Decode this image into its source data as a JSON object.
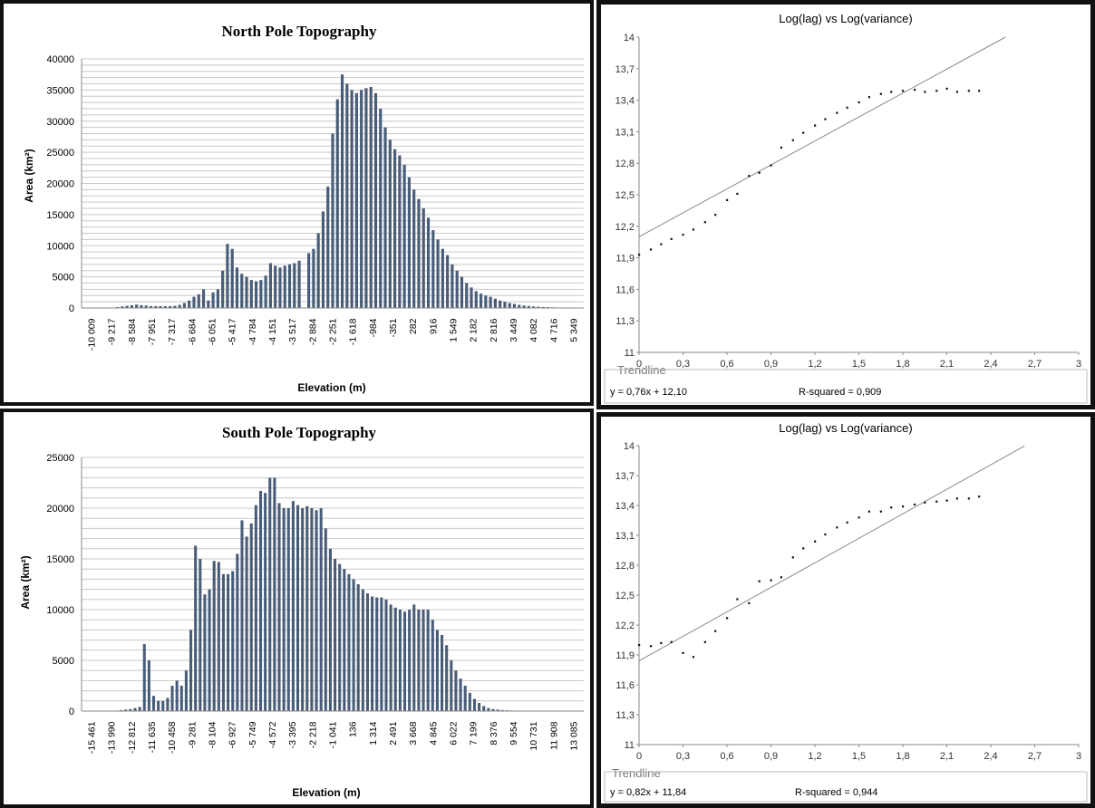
{
  "chart_data": [
    {
      "type": "bar",
      "title": "North Pole Topography",
      "xlabel": "Elevation (m)",
      "ylabel": "Area (km²)",
      "ylim": [
        0,
        40000
      ],
      "yticks": [
        "0",
        "5000",
        "10000",
        "15000",
        "20000",
        "25000",
        "30000",
        "35000",
        "40000"
      ],
      "grid": true,
      "x_tick_labels": [
        "-10 009",
        "-9 217",
        "-8 584",
        "-7 951",
        "-7 317",
        "-6 684",
        "-6 051",
        "-5 417",
        "-4 784",
        "-4 151",
        "-3 517",
        "-2 884",
        "-2 251",
        "-1 618",
        "-984",
        "-351",
        "282",
        "916",
        "1 549",
        "2 182",
        "2 816",
        "3 449",
        "4 082",
        "4 716",
        "5 349"
      ],
      "values": [
        0,
        0,
        0,
        0,
        0,
        0,
        0,
        150,
        250,
        350,
        450,
        550,
        450,
        400,
        300,
        300,
        300,
        300,
        300,
        350,
        500,
        800,
        1200,
        1800,
        2200,
        3000,
        1200,
        2500,
        3000,
        6000,
        10300,
        9500,
        6500,
        5500,
        5000,
        4500,
        4300,
        4500,
        5200,
        7200,
        6800,
        6500,
        6800,
        7000,
        7200,
        7600,
        0,
        8800,
        9500,
        12000,
        15500,
        19500,
        28000,
        33500,
        37500,
        36000,
        35000,
        34500,
        35000,
        35300,
        35500,
        34500,
        32000,
        29000,
        27000,
        25500,
        24500,
        23000,
        21000,
        19000,
        17500,
        16000,
        14500,
        12500,
        11000,
        9500,
        8500,
        7000,
        6000,
        5000,
        4000,
        3300,
        2700,
        2300,
        2000,
        1800,
        1500,
        1200,
        1000,
        800,
        650,
        500,
        400,
        320,
        250,
        200,
        160,
        130,
        100,
        80,
        60,
        50,
        40,
        30,
        20
      ]
    },
    {
      "type": "scatter",
      "title": "Log(lag) vs Log(variance)",
      "xlim": [
        0,
        3
      ],
      "ylim": [
        11,
        14
      ],
      "xticks": [
        "0",
        "0,3",
        "0,6",
        "0,9",
        "1,2",
        "1,5",
        "1,8",
        "2,1",
        "2,4",
        "2,7",
        "3"
      ],
      "yticks": [
        "11",
        "11,3",
        "11,6",
        "11,9",
        "12,2",
        "12,5",
        "12,8",
        "13,1",
        "13,4",
        "13,7",
        "14"
      ],
      "points": [
        [
          0.0,
          11.93
        ],
        [
          0.08,
          11.98
        ],
        [
          0.15,
          12.03
        ],
        [
          0.22,
          12.08
        ],
        [
          0.3,
          12.12
        ],
        [
          0.37,
          12.17
        ],
        [
          0.45,
          12.24
        ],
        [
          0.52,
          12.31
        ],
        [
          0.6,
          12.45
        ],
        [
          0.67,
          12.51
        ],
        [
          0.75,
          12.68
        ],
        [
          0.82,
          12.71
        ],
        [
          0.9,
          12.78
        ],
        [
          0.97,
          12.95
        ],
        [
          1.05,
          13.02
        ],
        [
          1.12,
          13.09
        ],
        [
          1.2,
          13.16
        ],
        [
          1.27,
          13.22
        ],
        [
          1.35,
          13.28
        ],
        [
          1.42,
          13.33
        ],
        [
          1.5,
          13.38
        ],
        [
          1.57,
          13.43
        ],
        [
          1.65,
          13.46
        ],
        [
          1.72,
          13.48
        ],
        [
          1.8,
          13.49
        ],
        [
          1.88,
          13.5
        ],
        [
          1.95,
          13.48
        ],
        [
          2.03,
          13.49
        ],
        [
          2.1,
          13.51
        ],
        [
          2.17,
          13.48
        ],
        [
          2.25,
          13.49
        ],
        [
          2.32,
          13.49
        ]
      ],
      "trendline": {
        "slope": 0.76,
        "intercept": 12.1,
        "x_end": 2.5
      },
      "trendline_label": "Trendline",
      "equation": "y = 0,76x + 12,10",
      "r_squared": "R-squared = 0,909"
    },
    {
      "type": "bar",
      "title": "South Pole Topography",
      "xlabel": "Elevation (m)",
      "ylabel": "Area (km²)",
      "ylim": [
        0,
        25000
      ],
      "yticks": [
        "0",
        "5000",
        "10000",
        "15000",
        "20000",
        "25000"
      ],
      "grid": true,
      "x_tick_labels": [
        "-15 461",
        "-13 990",
        "-12 812",
        "-11 635",
        "-10 458",
        "-9 281",
        "-8 104",
        "-6 927",
        "-5 749",
        "-4 572",
        "-3 395",
        "-2 218",
        "-1 041",
        "136",
        "1 314",
        "2 491",
        "3 668",
        "4 845",
        "6 022",
        "7 199",
        "8 376",
        "9 554",
        "10 731",
        "11 908",
        "13 085"
      ],
      "values": [
        0,
        0,
        0,
        0,
        0,
        0,
        0,
        50,
        100,
        150,
        200,
        300,
        400,
        6600,
        5000,
        1500,
        1000,
        1000,
        1300,
        2500,
        3000,
        2500,
        4000,
        8000,
        16300,
        15000,
        11500,
        12000,
        14800,
        14700,
        13500,
        13500,
        13800,
        15500,
        18800,
        17200,
        18500,
        20300,
        21700,
        21500,
        23000,
        23000,
        20500,
        20000,
        20000,
        20700,
        20300,
        20000,
        20200,
        20000,
        19800,
        20000,
        18000,
        16000,
        15000,
        14500,
        14000,
        13500,
        13000,
        12500,
        12000,
        11600,
        11300,
        11200,
        11200,
        11000,
        10500,
        10200,
        10000,
        9800,
        10000,
        10500,
        10000,
        10000,
        10000,
        9000,
        8000,
        7500,
        6500,
        5000,
        4000,
        3200,
        2500,
        1800,
        1200,
        800,
        500,
        300,
        200,
        150,
        100,
        80,
        60,
        50,
        40,
        30,
        20,
        10,
        0,
        0,
        0,
        0,
        0,
        0,
        0,
        0,
        0,
        0
      ]
    },
    {
      "type": "scatter",
      "title": "Log(lag) vs Log(variance)",
      "xlim": [
        0,
        3
      ],
      "ylim": [
        11,
        14
      ],
      "xticks": [
        "0",
        "0,3",
        "0,6",
        "0,9",
        "1,2",
        "1,5",
        "1,8",
        "2,1",
        "2,4",
        "2,7",
        "3"
      ],
      "yticks": [
        "11",
        "11,3",
        "11,6",
        "11,9",
        "12,2",
        "12,5",
        "12,8",
        "13,1",
        "13,4",
        "13,7",
        "14"
      ],
      "points": [
        [
          0.0,
          12.0
        ],
        [
          0.08,
          11.99
        ],
        [
          0.15,
          12.02
        ],
        [
          0.22,
          12.03
        ],
        [
          0.3,
          11.92
        ],
        [
          0.37,
          11.88
        ],
        [
          0.45,
          12.03
        ],
        [
          0.52,
          12.14
        ],
        [
          0.6,
          12.27
        ],
        [
          0.67,
          12.46
        ],
        [
          0.75,
          12.42
        ],
        [
          0.82,
          12.64
        ],
        [
          0.9,
          12.65
        ],
        [
          0.97,
          12.68
        ],
        [
          1.05,
          12.88
        ],
        [
          1.12,
          12.97
        ],
        [
          1.2,
          13.04
        ],
        [
          1.27,
          13.11
        ],
        [
          1.35,
          13.18
        ],
        [
          1.42,
          13.23
        ],
        [
          1.5,
          13.28
        ],
        [
          1.57,
          13.34
        ],
        [
          1.65,
          13.34
        ],
        [
          1.72,
          13.38
        ],
        [
          1.8,
          13.39
        ],
        [
          1.88,
          13.41
        ],
        [
          1.95,
          13.43
        ],
        [
          2.03,
          13.44
        ],
        [
          2.1,
          13.45
        ],
        [
          2.17,
          13.47
        ],
        [
          2.25,
          13.47
        ],
        [
          2.32,
          13.49
        ]
      ],
      "trendline": {
        "slope": 0.82,
        "intercept": 11.84,
        "x_end": 2.63
      },
      "trendline_label": "Trendline",
      "equation": "y = 0,82x + 11,84",
      "r_squared": "R-squared = 0,944"
    }
  ],
  "colors": {
    "bar": "#4a5d78",
    "grid": "#c8c8c8",
    "axis": "#888888",
    "points": "#111111",
    "trendline": "#8a8a8a",
    "border": "#111111"
  }
}
